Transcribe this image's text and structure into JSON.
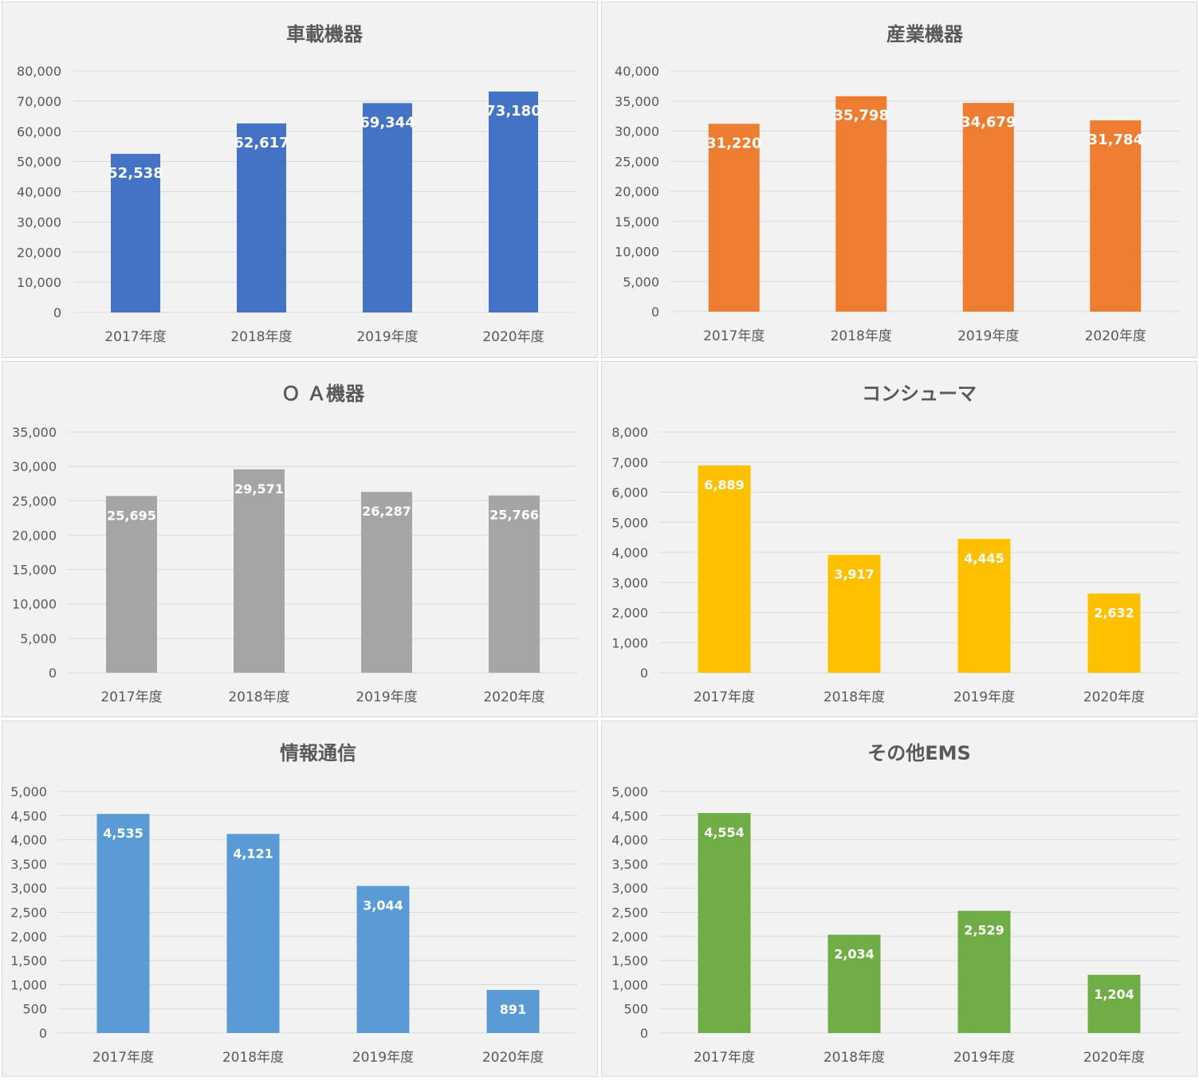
{
  "chart_data": [
    {
      "type": "bar",
      "title": "車載機器",
      "categories": [
        "2017年度",
        "2018年度",
        "2019年度",
        "2020年度"
      ],
      "values": [
        52538,
        62617,
        69344,
        73180
      ],
      "value_labels": [
        "52,538",
        "62,617",
        "69,344",
        "73,180"
      ],
      "ylim": [
        0,
        80000
      ],
      "yticks": [
        "0",
        "10,000",
        "20,000",
        "30,000",
        "40,000",
        "50,000",
        "60,000",
        "70,000",
        "80,000"
      ],
      "color": "#4472c4",
      "grid": true
    },
    {
      "type": "bar",
      "title": "産業機器",
      "categories": [
        "2017年度",
        "2018年度",
        "2019年度",
        "2020年度"
      ],
      "values": [
        31220,
        35798,
        34679,
        31784
      ],
      "value_labels": [
        "31,220",
        "35,798",
        "34,679",
        "31,784"
      ],
      "ylim": [
        0,
        40000
      ],
      "yticks": [
        "0",
        "5,000",
        "10,000",
        "15,000",
        "20,000",
        "25,000",
        "30,000",
        "35,000",
        "40,000"
      ],
      "color": "#ed7d31",
      "grid": true
    },
    {
      "type": "bar",
      "title": "Ｏ Ａ機器",
      "categories": [
        "2017年度",
        "2018年度",
        "2019年度",
        "2020年度"
      ],
      "values": [
        25695,
        29571,
        26287,
        25766
      ],
      "value_labels": [
        "25,695",
        "29,571",
        "26,287",
        "25,766"
      ],
      "ylim": [
        0,
        35000
      ],
      "yticks": [
        "0",
        "5,000",
        "10,000",
        "15,000",
        "20,000",
        "25,000",
        "30,000",
        "35,000"
      ],
      "color": "#a5a5a5",
      "grid": true
    },
    {
      "type": "bar",
      "title": "コンシューマ",
      "categories": [
        "2017年度",
        "2018年度",
        "2019年度",
        "2020年度"
      ],
      "values": [
        6889,
        3917,
        4445,
        2632
      ],
      "value_labels": [
        "6,889",
        "3,917",
        "4,445",
        "2,632"
      ],
      "ylim": [
        0,
        8000
      ],
      "yticks": [
        "0",
        "1,000",
        "2,000",
        "3,000",
        "4,000",
        "5,000",
        "6,000",
        "7,000",
        "8,000"
      ],
      "color": "#ffc000",
      "grid": true
    },
    {
      "type": "bar",
      "title": "情報通信",
      "categories": [
        "2017年度",
        "2018年度",
        "2019年度",
        "2020年度"
      ],
      "values": [
        4535,
        4121,
        3044,
        891
      ],
      "value_labels": [
        "4,535",
        "4,121",
        "3,044",
        "891"
      ],
      "ylim": [
        0,
        5000
      ],
      "yticks": [
        "0",
        "500",
        "1,000",
        "1,500",
        "2,000",
        "2,500",
        "3,000",
        "3,500",
        "4,000",
        "4,500",
        "5,000"
      ],
      "color": "#5b9bd5",
      "grid": true
    },
    {
      "type": "bar",
      "title": "その他EMS",
      "categories": [
        "2017年度",
        "2018年度",
        "2019年度",
        "2020年度"
      ],
      "values": [
        4554,
        2034,
        2529,
        1204
      ],
      "value_labels": [
        "4,554",
        "2,034",
        "2,529",
        "1,204"
      ],
      "ylim": [
        0,
        5000
      ],
      "yticks": [
        "0",
        "500",
        "1,000",
        "1,500",
        "2,000",
        "2,500",
        "3,000",
        "3,500",
        "4,000",
        "4,500",
        "5,000"
      ],
      "color": "#70ad47",
      "grid": true
    }
  ]
}
